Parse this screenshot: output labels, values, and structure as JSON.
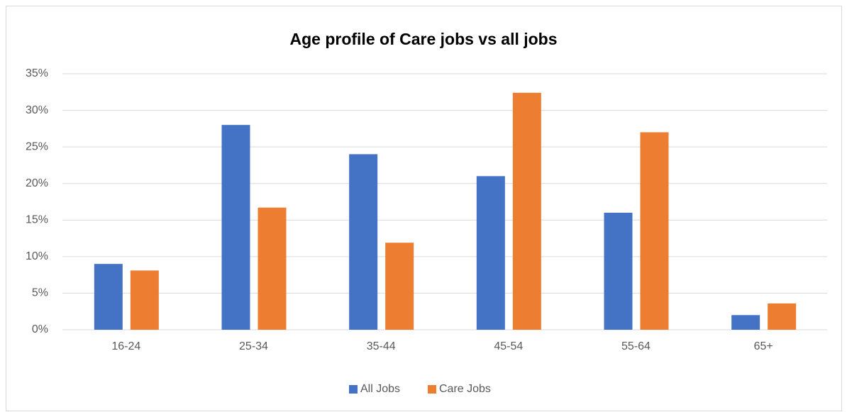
{
  "chart_data": {
    "type": "bar",
    "title": "Age profile of Care jobs vs all jobs",
    "categories": [
      "16-24",
      "25-34",
      "35-44",
      "45-54",
      "55-64",
      "65+"
    ],
    "series": [
      {
        "name": "All Jobs",
        "color": "#4472c4",
        "values": [
          9,
          28,
          24,
          21,
          16,
          2
        ]
      },
      {
        "name": "Care Jobs",
        "color": "#ed7d31",
        "values": [
          8.1,
          16.7,
          11.9,
          32.4,
          27,
          3.6
        ]
      }
    ],
    "ylim": [
      0,
      35
    ],
    "yticks": [
      {
        "value": 0,
        "label": "0%"
      },
      {
        "value": 5,
        "label": "5%"
      },
      {
        "value": 10,
        "label": "10%"
      },
      {
        "value": 15,
        "label": "15%"
      },
      {
        "value": 20,
        "label": "20%"
      },
      {
        "value": 25,
        "label": "25%"
      },
      {
        "value": 30,
        "label": "30%"
      },
      {
        "value": 35,
        "label": "35%"
      }
    ],
    "grid": true,
    "legend": "bottom"
  }
}
